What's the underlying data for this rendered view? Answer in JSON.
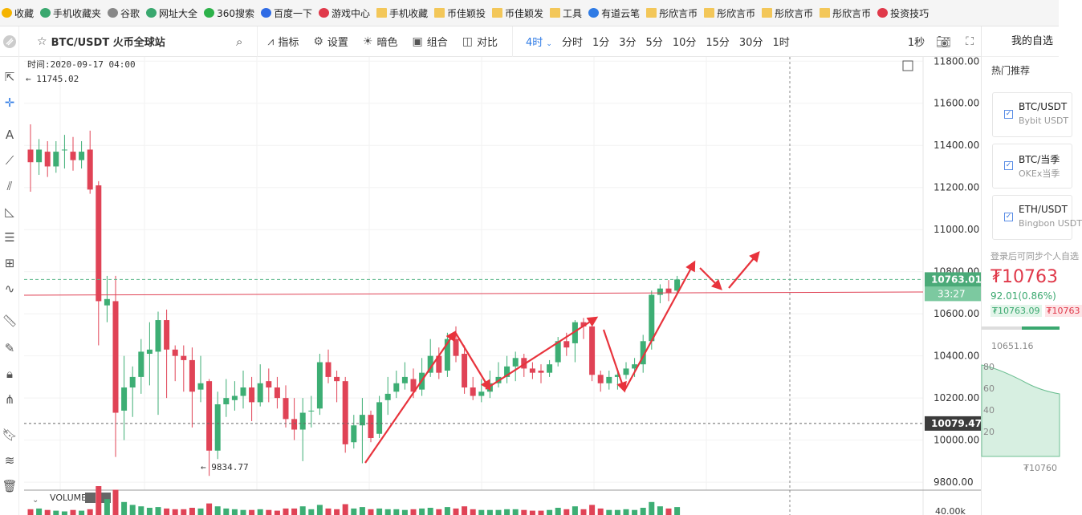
{
  "bookmarks": [
    {
      "label": "收藏",
      "icon": "star-icon"
    },
    {
      "label": "手机收藏夹",
      "icon": "phone-icon"
    },
    {
      "label": "谷歌",
      "icon": "page-icon"
    },
    {
      "label": "网址大全",
      "icon": "globe-icon"
    },
    {
      "label": "360搜索",
      "icon": "search-icon"
    },
    {
      "label": "百度一下",
      "icon": "paw-icon"
    },
    {
      "label": "游戏中心",
      "icon": "game-icon"
    },
    {
      "label": "手机收藏",
      "icon": "folder-icon"
    },
    {
      "label": "币佳颖投",
      "icon": "folder-icon"
    },
    {
      "label": "币佳颖发",
      "icon": "folder-icon"
    },
    {
      "label": "工具",
      "icon": "folder-icon"
    },
    {
      "label": "有道云笔",
      "icon": "note-icon"
    },
    {
      "label": "彤欣言币",
      "icon": "folder-icon"
    },
    {
      "label": "彤欣言币",
      "icon": "folder-icon"
    },
    {
      "label": "彤欣言币",
      "icon": "folder-icon"
    },
    {
      "label": "彤欣言币",
      "icon": "folder-icon"
    },
    {
      "label": "投资技巧",
      "icon": "grid-icon"
    }
  ],
  "toolbar": {
    "symbol": "BTC/USDT 火币全球站",
    "indicators": "指标",
    "settings": "设置",
    "theme": "暗色",
    "combo": "组合",
    "compare": "对比",
    "active_interval": "4时",
    "intervals": [
      "分时",
      "1分",
      "3分",
      "5分",
      "10分",
      "15分",
      "30分",
      "1时"
    ],
    "refresh": "1秒"
  },
  "chart": {
    "time_label": "时间:2020-09-17 04:00",
    "high_marker": "11745.02",
    "low_marker": "9834.77",
    "last_price_tag": "10763.01",
    "countdown_tag": "33:27",
    "dashed_low_tag": "10079.47",
    "volume_label": "VOLUME",
    "volume_axis_label": "40.00k",
    "colors": {
      "up": "#3dae74",
      "down": "#e04356",
      "arrow": "#e8333c",
      "last_line": "#5bb88a"
    }
  },
  "chart_data": {
    "type": "candlestick",
    "y_ticks": [
      11800,
      11600,
      11400,
      11200,
      11000,
      10800,
      10600,
      10400,
      10200,
      10000,
      9800
    ],
    "ylim": [
      9770,
      11820
    ],
    "candles": [
      [
        11380,
        11320,
        11500,
        11180
      ],
      [
        11320,
        11380,
        11430,
        11260
      ],
      [
        11370,
        11300,
        11420,
        11250
      ],
      [
        11300,
        11370,
        11420,
        11270
      ],
      [
        11380,
        11380,
        11450,
        11290
      ],
      [
        11370,
        11330,
        11440,
        11280
      ],
      [
        11330,
        11370,
        11420,
        11290
      ],
      [
        11380,
        11190,
        11470,
        11170
      ],
      [
        11210,
        10660,
        11230,
        10450
      ],
      [
        10640,
        10670,
        10780,
        10560
      ],
      [
        10660,
        10130,
        10780,
        9920
      ],
      [
        10140,
        10250,
        10400,
        10000
      ],
      [
        10250,
        10300,
        10350,
        10110
      ],
      [
        10300,
        10420,
        10480,
        10220
      ],
      [
        10410,
        10430,
        10560,
        10260
      ],
      [
        10420,
        10570,
        10610,
        10120
      ],
      [
        10570,
        10430,
        10620,
        10200
      ],
      [
        10430,
        10400,
        10450,
        10280
      ],
      [
        10400,
        10380,
        10450,
        10230
      ],
      [
        10380,
        10230,
        10440,
        10060
      ],
      [
        10240,
        10270,
        10400,
        10180
      ],
      [
        10280,
        9950,
        10290,
        9830
      ],
      [
        9950,
        10170,
        10230,
        9910
      ],
      [
        10170,
        10200,
        10290,
        10110
      ],
      [
        10190,
        10210,
        10280,
        10140
      ],
      [
        10210,
        10250,
        10330,
        10150
      ],
      [
        10250,
        10180,
        10300,
        10090
      ],
      [
        10180,
        10270,
        10360,
        10160
      ],
      [
        10280,
        10250,
        10340,
        10180
      ],
      [
        10250,
        10200,
        10300,
        10150
      ],
      [
        10200,
        10100,
        10260,
        10060
      ],
      [
        10100,
        10050,
        10200,
        10000
      ],
      [
        10050,
        10130,
        10200,
        9900
      ],
      [
        10140,
        10140,
        10210,
        10060
      ],
      [
        10150,
        10370,
        10410,
        10120
      ],
      [
        10370,
        10300,
        10430,
        10270
      ],
      [
        10300,
        10280,
        10330,
        10180
      ],
      [
        10280,
        9980,
        10300,
        9940
      ],
      [
        9990,
        10070,
        10120,
        9960
      ],
      [
        10070,
        10120,
        10200,
        9890
      ],
      [
        10120,
        10010,
        10140,
        9990
      ],
      [
        10030,
        10180,
        10210,
        10010
      ],
      [
        10190,
        10220,
        10300,
        10120
      ],
      [
        10230,
        10270,
        10330,
        10200
      ],
      [
        10270,
        10300,
        10370,
        10240
      ],
      [
        10290,
        10230,
        10340,
        10200
      ],
      [
        10240,
        10320,
        10390,
        10210
      ],
      [
        10320,
        10400,
        10480,
        10300
      ],
      [
        10400,
        10320,
        10440,
        10290
      ],
      [
        10330,
        10480,
        10510,
        10300
      ],
      [
        10480,
        10400,
        10540,
        10370
      ],
      [
        10410,
        10250,
        10450,
        10220
      ],
      [
        10250,
        10210,
        10300,
        10190
      ],
      [
        10210,
        10230,
        10290,
        10180
      ],
      [
        10230,
        10270,
        10330,
        10200
      ],
      [
        10270,
        10300,
        10370,
        10250
      ],
      [
        10300,
        10350,
        10400,
        10270
      ],
      [
        10350,
        10390,
        10420,
        10280
      ],
      [
        10390,
        10340,
        10410,
        10300
      ],
      [
        10340,
        10320,
        10370,
        10290
      ],
      [
        10330,
        10320,
        10360,
        10270
      ],
      [
        10320,
        10360,
        10380,
        10300
      ],
      [
        10370,
        10470,
        10490,
        10350
      ],
      [
        10470,
        10440,
        10510,
        10400
      ],
      [
        10460,
        10560,
        10570,
        10370
      ],
      [
        10560,
        10540,
        10580,
        10480
      ],
      [
        10540,
        10310,
        10560,
        10280
      ],
      [
        10310,
        10270,
        10330,
        10230
      ],
      [
        10270,
        10300,
        10330,
        10240
      ],
      [
        10300,
        10310,
        10340,
        10240
      ],
      [
        10310,
        10340,
        10370,
        10290
      ],
      [
        10340,
        10360,
        10390,
        10300
      ],
      [
        10360,
        10470,
        10500,
        10320
      ],
      [
        10470,
        10690,
        10710,
        10430
      ],
      [
        10690,
        10720,
        10740,
        10650
      ],
      [
        10720,
        10700,
        10760,
        10660
      ],
      [
        10710,
        10763,
        10780,
        10690
      ]
    ],
    "volumes": [
      8,
      9,
      7,
      6,
      5,
      7,
      6,
      8,
      40,
      22,
      35,
      18,
      14,
      12,
      10,
      11,
      9,
      8,
      8,
      10,
      9,
      16,
      12,
      9,
      8,
      7,
      7,
      8,
      7,
      6,
      9,
      9,
      12,
      8,
      14,
      9,
      8,
      15,
      9,
      11,
      8,
      9,
      8,
      8,
      7,
      8,
      9,
      10,
      8,
      11,
      9,
      12,
      8,
      7,
      7,
      7,
      8,
      8,
      7,
      6,
      6,
      7,
      10,
      8,
      12,
      8,
      14,
      9,
      7,
      7,
      8,
      7,
      10,
      18,
      12,
      9,
      11
    ]
  },
  "sidebar": {
    "title": "我的自选",
    "hot": "热门推荐",
    "cards": [
      {
        "name": "BTC/USDT",
        "sub": "Bybit USDT"
      },
      {
        "name": "BTC/当季",
        "sub": "OKEx当季"
      },
      {
        "name": "ETH/USDT",
        "sub": "Bingbon USDT"
      }
    ],
    "login_note": "登录后可同步个人自选",
    "price": "₮10763",
    "change": "92.01(0.86%)",
    "tag_green": "₮10763.09",
    "tag_red": "₮10763",
    "mini_left": "10651.16",
    "mini_ticks": [
      "80",
      "60",
      "40",
      "20"
    ],
    "mini_bottom": "₮10760"
  }
}
